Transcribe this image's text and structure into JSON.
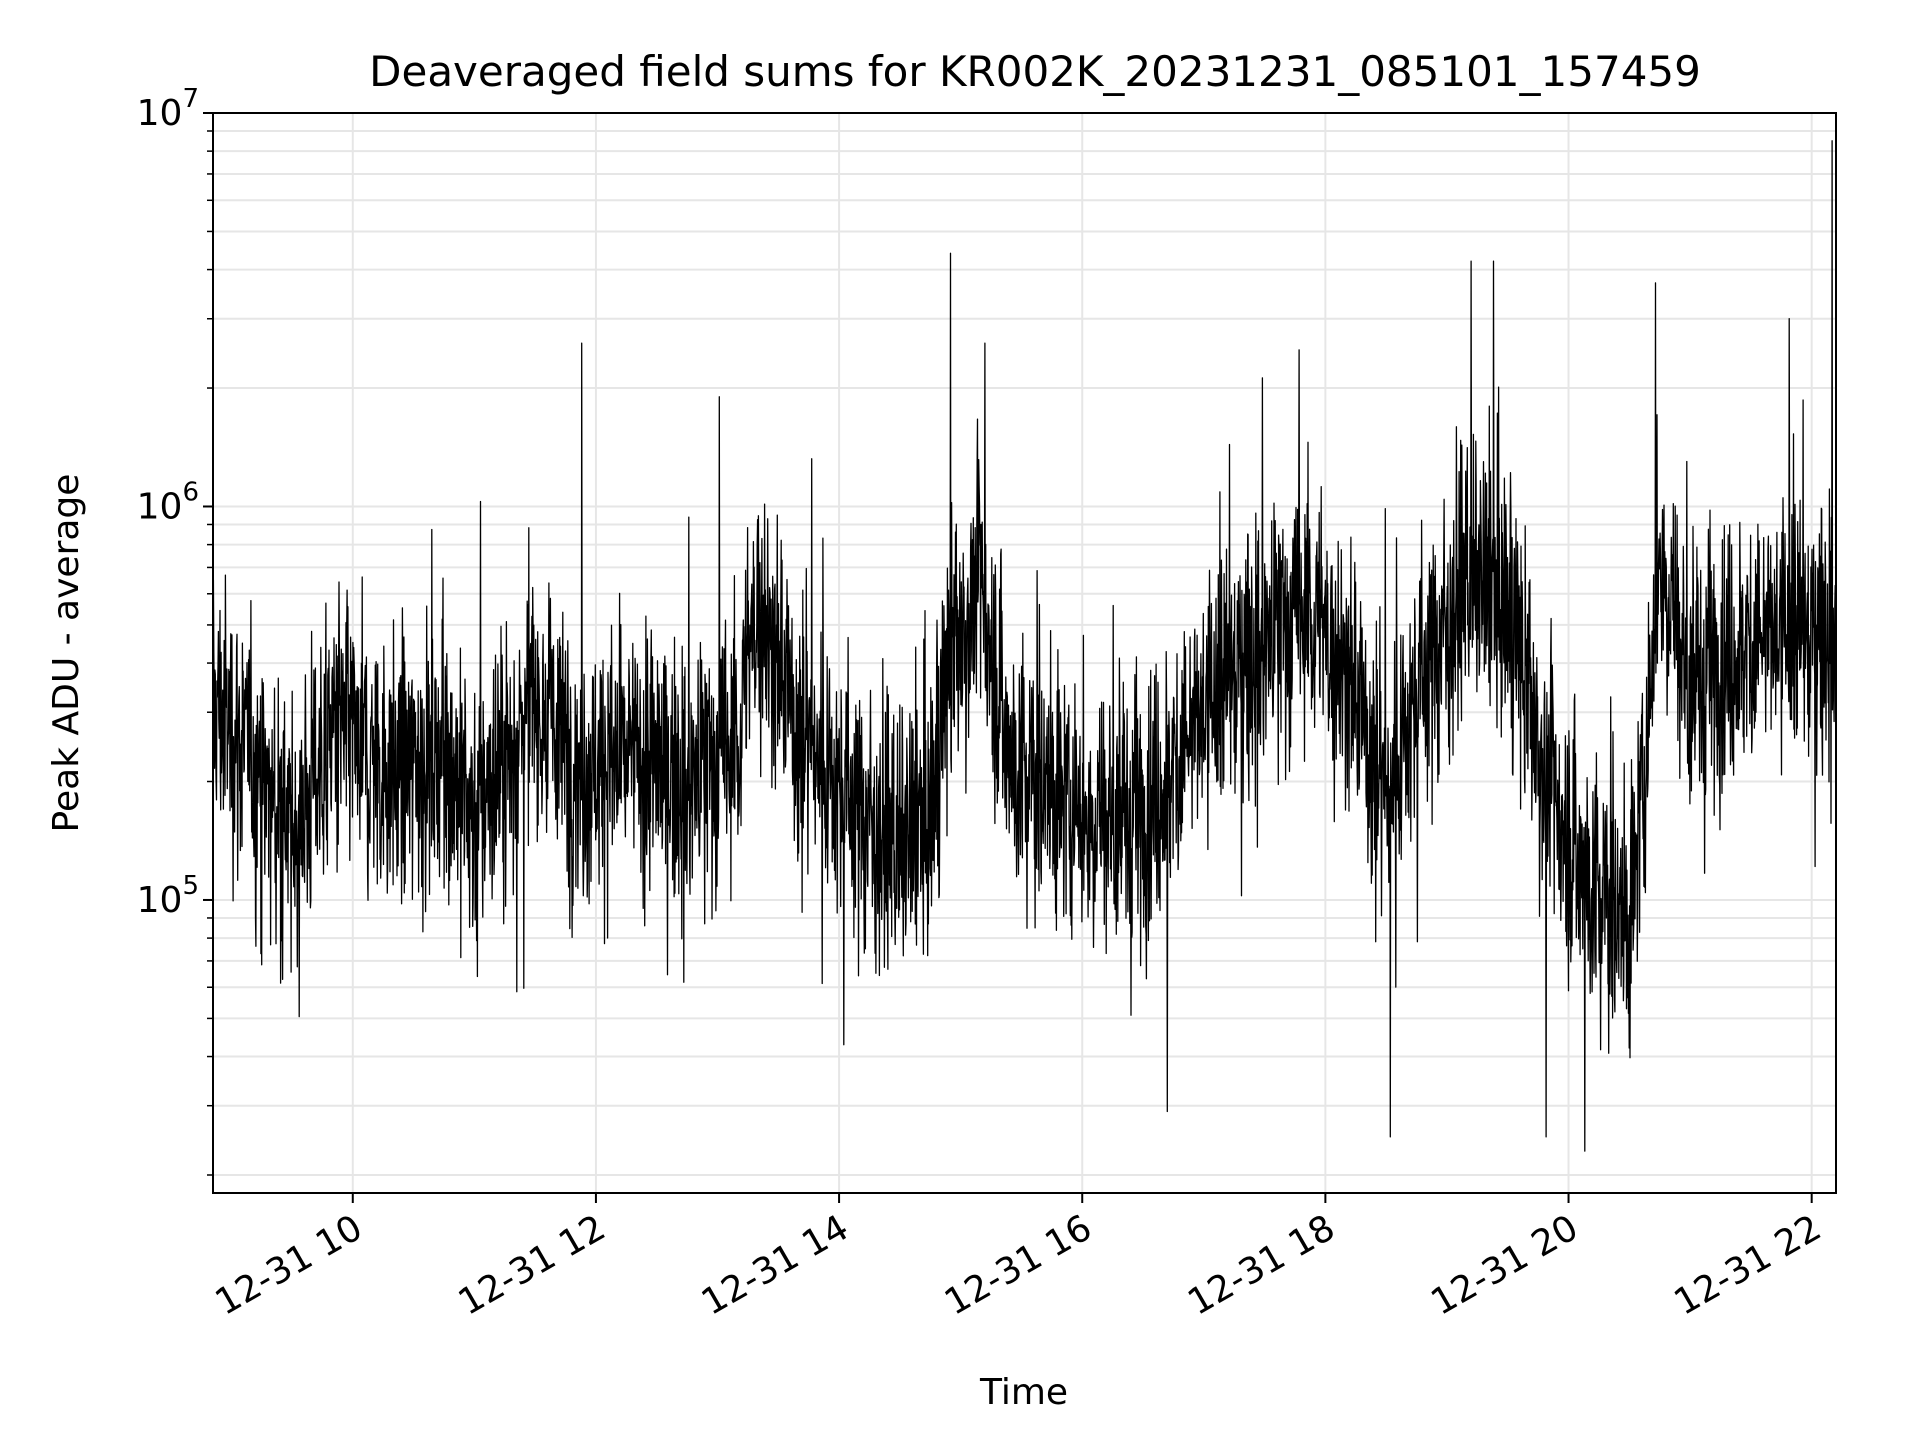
{
  "chart_data": {
    "type": "line",
    "title": "Deaveraged field sums for KR002K_20231231_085101_157459",
    "xlabel": "Time",
    "ylabel": "Peak ADU - average",
    "x_axis": {
      "type": "time",
      "start": "2023-12-31T08:51:01",
      "end": "2023-12-31T22:12:00"
    },
    "xticks": [
      {
        "time": "2023-12-31T10:00",
        "label": "12-31 10"
      },
      {
        "time": "2023-12-31T12:00",
        "label": "12-31 12"
      },
      {
        "time": "2023-12-31T14:00",
        "label": "12-31 14"
      },
      {
        "time": "2023-12-31T16:00",
        "label": "12-31 16"
      },
      {
        "time": "2023-12-31T18:00",
        "label": "12-31 18"
      },
      {
        "time": "2023-12-31T20:00",
        "label": "12-31 20"
      },
      {
        "time": "2023-12-31T22:00",
        "label": "12-31 22"
      }
    ],
    "y_scale": "log",
    "ylim": [
      18000,
      10000000
    ],
    "yticks": [
      {
        "value": 100000,
        "base": "10",
        "exp": "5"
      },
      {
        "value": 1000000,
        "base": "10",
        "exp": "6"
      },
      {
        "value": 10000000,
        "base": "10",
        "exp": "7"
      }
    ],
    "grid": true,
    "line_color": "#000000",
    "grid_color": "#e6e6e6",
    "series": [
      {
        "trend": [
          {
            "time": "2023-12-31T08:51",
            "value": 320000
          },
          {
            "time": "2023-12-31T09:10",
            "value": 230000
          },
          {
            "time": "2023-12-31T09:30",
            "value": 140000
          },
          {
            "time": "2023-12-31T09:50",
            "value": 280000
          },
          {
            "time": "2023-12-31T10:20",
            "value": 210000
          },
          {
            "time": "2023-12-31T10:45",
            "value": 240000
          },
          {
            "time": "2023-12-31T11:00",
            "value": 160000
          },
          {
            "time": "2023-12-31T11:30",
            "value": 330000
          },
          {
            "time": "2023-12-31T11:50",
            "value": 220000
          },
          {
            "time": "2023-12-31T12:20",
            "value": 230000
          },
          {
            "time": "2023-12-31T12:45",
            "value": 200000
          },
          {
            "time": "2023-12-31T13:10",
            "value": 250000
          },
          {
            "time": "2023-12-31T13:20",
            "value": 600000
          },
          {
            "time": "2023-12-31T13:40",
            "value": 270000
          },
          {
            "time": "2023-12-31T14:00",
            "value": 200000
          },
          {
            "time": "2023-12-31T14:30",
            "value": 130000
          },
          {
            "time": "2023-12-31T14:45",
            "value": 160000
          },
          {
            "time": "2023-12-31T14:55",
            "value": 400000
          },
          {
            "time": "2023-12-31T15:10",
            "value": 650000
          },
          {
            "time": "2023-12-31T15:25",
            "value": 220000
          },
          {
            "time": "2023-12-31T16:00",
            "value": 170000
          },
          {
            "time": "2023-12-31T16:30",
            "value": 160000
          },
          {
            "time": "2023-12-31T16:50",
            "value": 240000
          },
          {
            "time": "2023-12-31T17:20",
            "value": 420000
          },
          {
            "time": "2023-12-31T17:50",
            "value": 550000
          },
          {
            "time": "2023-12-31T18:10",
            "value": 400000
          },
          {
            "time": "2023-12-31T18:30",
            "value": 180000
          },
          {
            "time": "2023-12-31T18:45",
            "value": 350000
          },
          {
            "time": "2023-12-31T19:10",
            "value": 650000
          },
          {
            "time": "2023-12-31T19:30",
            "value": 550000
          },
          {
            "time": "2023-12-31T19:50",
            "value": 200000
          },
          {
            "time": "2023-12-31T20:10",
            "value": 110000
          },
          {
            "time": "2023-12-31T20:30",
            "value": 85000
          },
          {
            "time": "2023-12-31T20:40",
            "value": 300000
          },
          {
            "time": "2023-12-31T20:45",
            "value": 800000
          },
          {
            "time": "2023-12-31T21:00",
            "value": 350000
          },
          {
            "time": "2023-12-31T21:30",
            "value": 450000
          },
          {
            "time": "2023-12-31T22:00",
            "value": 480000
          },
          {
            "time": "2023-12-31T22:12",
            "value": 520000
          }
        ],
        "spikes": [
          {
            "time": "2023-12-31T11:53",
            "value": 2600000
          },
          {
            "time": "2023-12-31T13:01",
            "value": 1900000
          },
          {
            "time": "2023-12-31T14:55",
            "value": 4400000
          },
          {
            "time": "2023-12-31T15:12",
            "value": 2600000
          },
          {
            "time": "2023-12-31T17:47",
            "value": 2500000
          },
          {
            "time": "2023-12-31T19:12",
            "value": 4200000
          },
          {
            "time": "2023-12-31T19:23",
            "value": 4200000
          },
          {
            "time": "2023-12-31T20:43",
            "value": 3700000
          },
          {
            "time": "2023-12-31T21:49",
            "value": 3000000
          },
          {
            "time": "2023-12-31T22:10",
            "value": 8500000
          },
          {
            "time": "2023-12-31T16:42",
            "value": 29000
          },
          {
            "time": "2023-12-31T18:32",
            "value": 25000
          },
          {
            "time": "2023-12-31T20:08",
            "value": 23000
          },
          {
            "time": "2023-12-31T19:49",
            "value": 25000
          }
        ]
      }
    ]
  }
}
